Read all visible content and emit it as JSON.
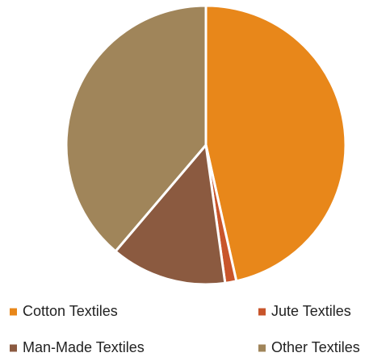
{
  "chart_data": {
    "type": "pie",
    "categories": [
      "Cotton Textiles",
      "Jute Textiles",
      "Man-Made Textiles",
      "Other Textiles"
    ],
    "values": [
      46.5,
      1.3,
      13.4,
      38.8
    ],
    "colors": [
      "#E8871A",
      "#C8552B",
      "#8B5A40",
      "#A0855A"
    ]
  }
}
